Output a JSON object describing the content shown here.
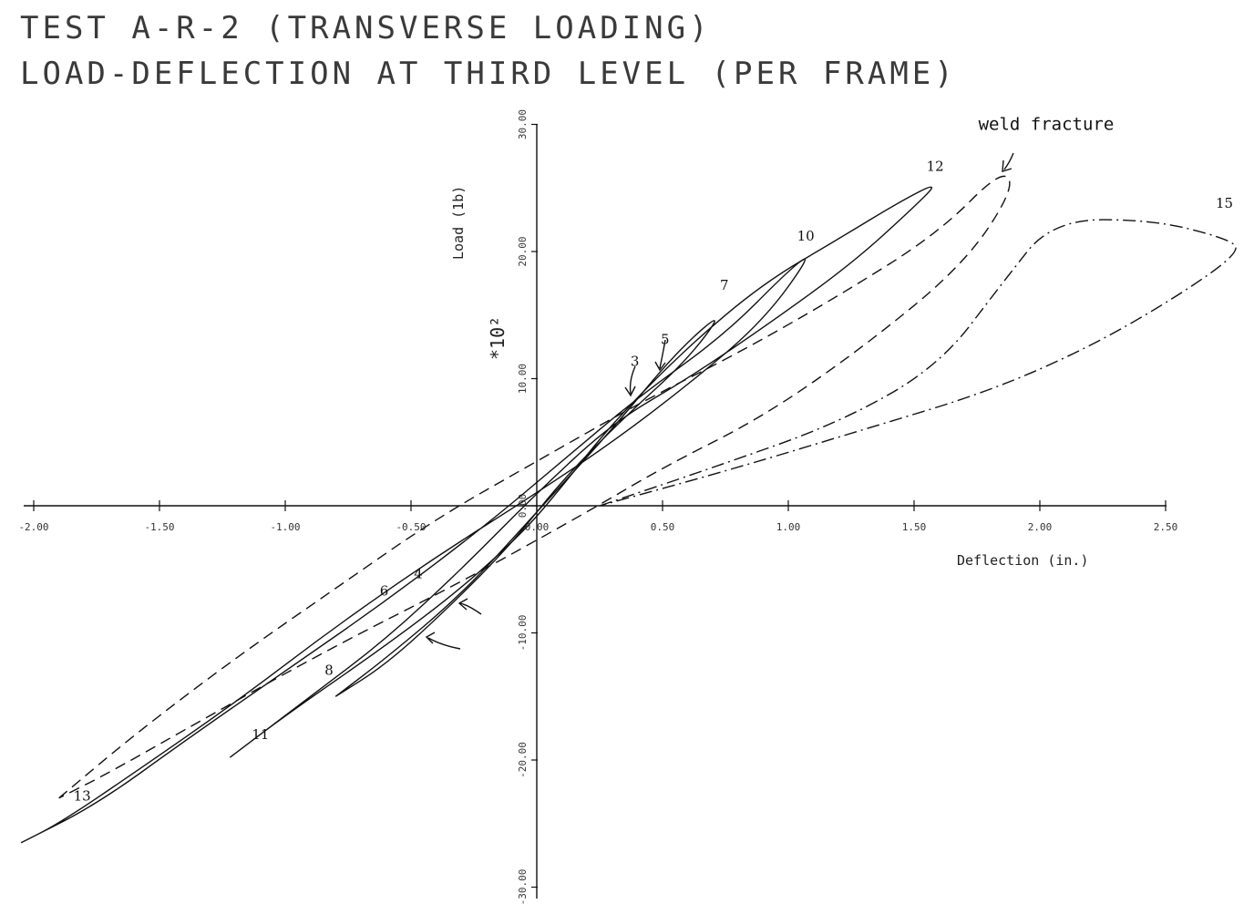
{
  "chart_data": {
    "type": "line",
    "title": "TEST A-R-2 (TRANSVERSE LOADING)",
    "subtitle": "LOAD-DEFLECTION AT THIRD LEVEL (PER FRAME)",
    "xlabel": "Deflection (in.)",
    "ylabel": "Load (1b)",
    "y_multiplier": "*10²",
    "xlim": [
      -2.0,
      2.5
    ],
    "ylim": [
      -30.0,
      30.0
    ],
    "x_ticks": [
      {
        "value": -2.0,
        "label": "-2.00"
      },
      {
        "value": -1.5,
        "label": "-1.50"
      },
      {
        "value": -1.0,
        "label": "-1.00"
      },
      {
        "value": -0.5,
        "label": "-0.50"
      },
      {
        "value": 0.0,
        "label": "0.00"
      },
      {
        "value": 0.5,
        "label": "0.50"
      },
      {
        "value": 1.0,
        "label": "1.00"
      },
      {
        "value": 1.5,
        "label": "1.50"
      },
      {
        "value": 2.0,
        "label": "2.00"
      },
      {
        "value": 2.5,
        "label": "2.50"
      }
    ],
    "y_ticks": [
      {
        "value": 30.0,
        "label": "30.00"
      },
      {
        "value": 20.0,
        "label": "20.00"
      },
      {
        "value": 10.0,
        "label": "10.00"
      },
      {
        "value": 0.0,
        "label": "0.00"
      },
      {
        "value": -10.0,
        "label": "-10.00"
      },
      {
        "value": -20.0,
        "label": "-20.00"
      },
      {
        "value": -30.0,
        "label": "-30.00"
      }
    ],
    "grid": false,
    "series": [
      {
        "style": "solid",
        "x": [
          -1.22,
          -1.0,
          -0.6,
          -0.3,
          -0.05,
          0.1,
          0.3,
          0.6,
          0.9,
          1.2,
          1.45,
          1.6,
          1.5,
          1.25,
          0.9,
          0.6,
          0.3,
          0.0,
          -0.3,
          -0.6,
          -0.9,
          -1.1,
          -1.22
        ],
        "y": [
          -19.8,
          -16.5,
          -11.0,
          -6.5,
          -2.0,
          1.5,
          6.5,
          12.5,
          17.5,
          21.0,
          24.0,
          25.5,
          23.5,
          19.0,
          14.0,
          10.0,
          6.5,
          1.0,
          -5.0,
          -10.5,
          -15.0,
          -18.0,
          -19.8
        ]
      },
      {
        "style": "solid",
        "x": [
          -0.8,
          -0.6,
          -0.3,
          0.0,
          0.3,
          0.55,
          0.75,
          0.6,
          0.35,
          0.1,
          -0.1,
          -0.35,
          -0.6,
          -0.8
        ],
        "y": [
          -15.0,
          -12.0,
          -7.0,
          -0.5,
          6.0,
          12.0,
          15.5,
          11.5,
          7.0,
          2.0,
          -3.0,
          -8.0,
          -12.5,
          -15.0
        ]
      },
      {
        "style": "dashed",
        "x": [
          -1.9,
          -1.6,
          -1.2,
          -0.8,
          -0.4,
          0.0,
          0.4,
          0.8,
          1.2,
          1.6,
          1.85,
          1.9,
          1.7,
          1.3,
          0.9,
          0.5,
          0.2,
          -0.3,
          -0.8,
          -1.3,
          -1.7,
          -1.9
        ],
        "y": [
          -23.0,
          -18.0,
          -12.0,
          -6.5,
          -1.0,
          3.5,
          8.0,
          12.0,
          16.5,
          21.5,
          26.5,
          25.0,
          19.0,
          12.5,
          7.0,
          3.0,
          -0.5,
          -6.0,
          -11.0,
          -16.5,
          -21.0,
          -23.0
        ]
      },
      {
        "style": "solid",
        "x": [
          -2.05,
          -1.9,
          -1.6,
          -1.2,
          -0.8,
          -0.4,
          0.0,
          0.3,
          0.6,
          0.9,
          1.1,
          1.0,
          0.75,
          0.4,
          0.1,
          -0.2,
          -0.6,
          -1.0,
          -1.4,
          -1.75,
          -2.05
        ],
        "y": [
          -26.5,
          -25.0,
          -21.0,
          -15.5,
          -9.5,
          -4.0,
          1.0,
          5.0,
          9.5,
          14.5,
          20.0,
          18.5,
          13.5,
          8.5,
          3.5,
          -1.5,
          -7.5,
          -13.0,
          -18.5,
          -23.5,
          -26.5
        ]
      },
      {
        "style": "dash-dot",
        "x": [
          0.25,
          0.7,
          1.2,
          1.6,
          1.85,
          2.05,
          2.45,
          2.75,
          2.8,
          2.55,
          2.2,
          1.8,
          1.3,
          0.8,
          0.25
        ],
        "y": [
          0.0,
          3.0,
          6.5,
          11.0,
          17.5,
          22.5,
          22.5,
          21.0,
          20.0,
          16.5,
          12.5,
          9.0,
          6.0,
          3.0,
          0.0
        ]
      }
    ],
    "annotations": [
      {
        "text": "3",
        "x": 0.38,
        "y": 9.0
      },
      {
        "text": "4",
        "x": -0.3,
        "y": -8.0
      },
      {
        "text": "5",
        "x": 0.5,
        "y": 10.5
      },
      {
        "text": "6",
        "x": -0.45,
        "y": -10.0
      },
      {
        "text": "7",
        "x": 0.75,
        "y": 16.0
      },
      {
        "text": "8",
        "x": -0.8,
        "y": -15.0
      },
      {
        "text": "10",
        "x": 1.1,
        "y": 20.0
      },
      {
        "text": "11",
        "x": -1.22,
        "y": -19.8
      },
      {
        "text": "12",
        "x": 1.6,
        "y": 25.5
      },
      {
        "text": "13",
        "x": -1.9,
        "y": -25.5
      },
      {
        "text": "15",
        "x": 2.75,
        "y": 21.0
      },
      {
        "text": "weld fracture",
        "x": 1.85,
        "y": 26.5
      }
    ]
  }
}
